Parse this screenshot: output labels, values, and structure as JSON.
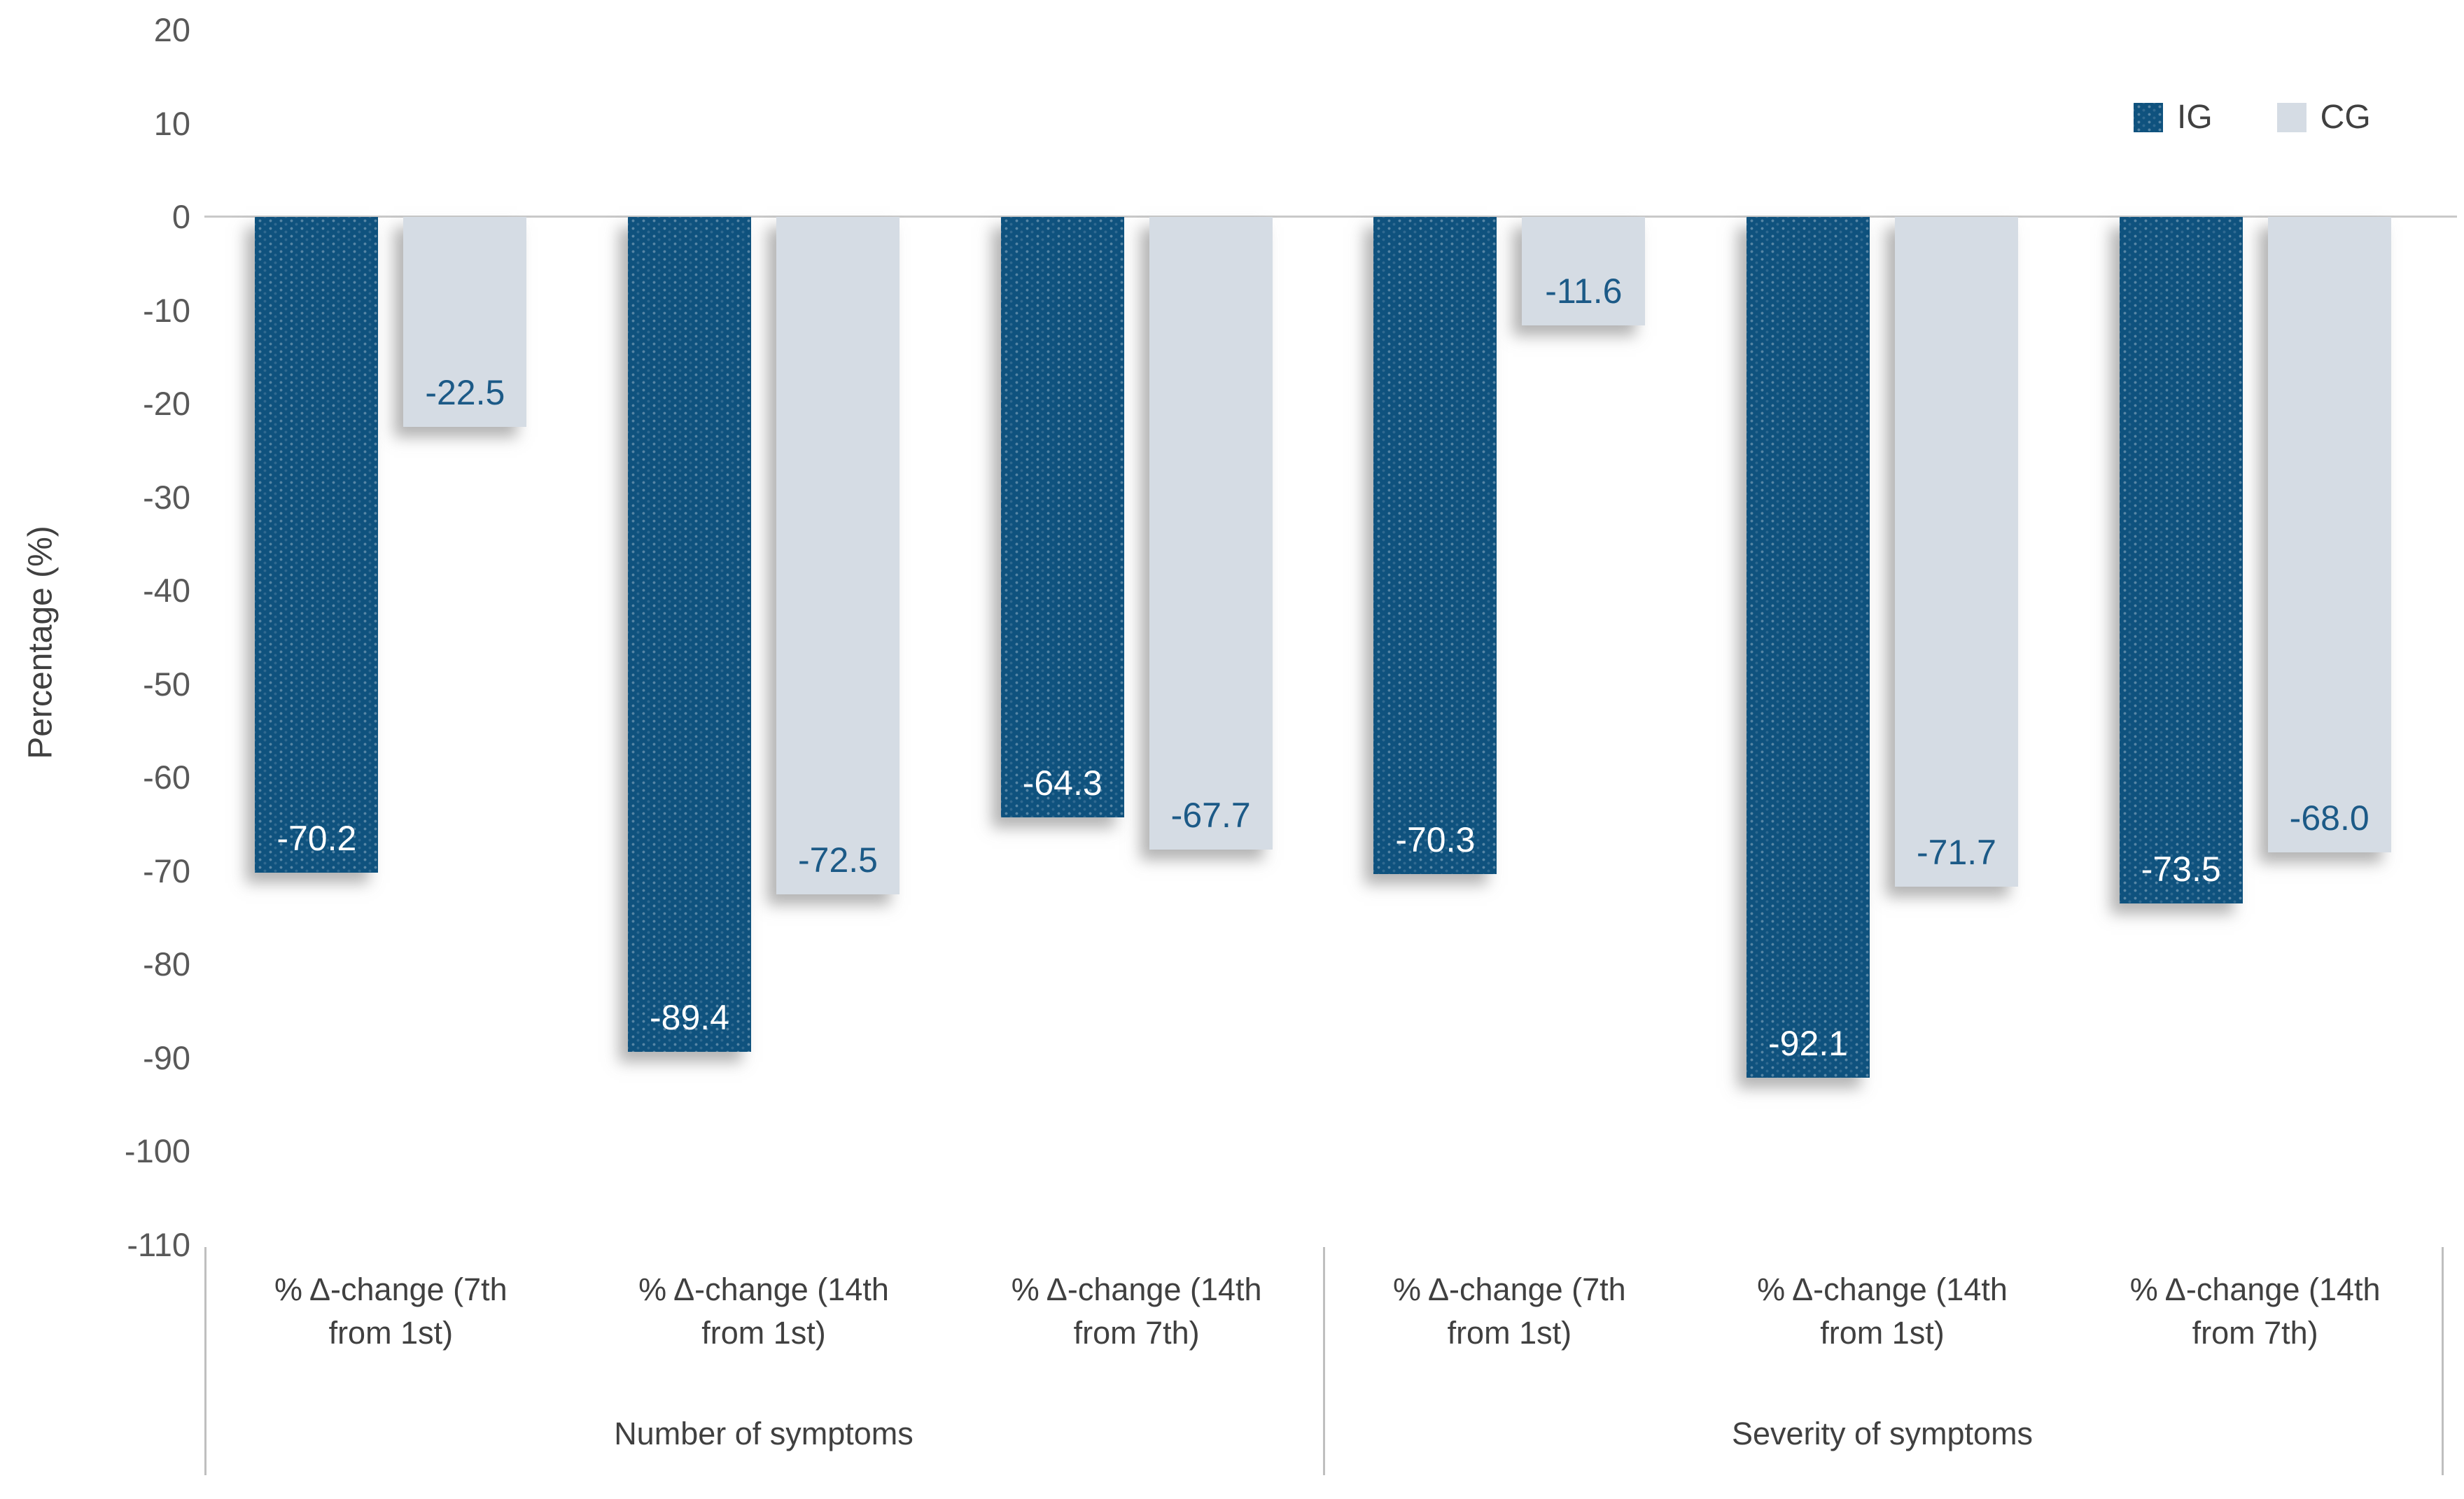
{
  "figure": {
    "y_axis_title": "Percentage (%)",
    "colors": {
      "ig_bar": "#0f527e",
      "cg_bar": "#d5dce4",
      "ig_value_text": "#ffffff",
      "cg_value_text": "#1c5a87",
      "tick_text": "#595959",
      "label_text": "#404040",
      "axis_line": "#c9c9c9",
      "separator_line": "#bfbfbf"
    }
  },
  "chart_data": {
    "type": "bar",
    "title": "",
    "ylabel": "Percentage (%)",
    "xlabel": "",
    "ylim": [
      -110,
      20
    ],
    "grid": false,
    "legend_position": "top-right",
    "legend": [
      "IG",
      "CG"
    ],
    "y_ticks": [
      20,
      10,
      0,
      -10,
      -20,
      -30,
      -40,
      -50,
      -60,
      -70,
      -80,
      -90,
      -100,
      -110
    ],
    "groups": [
      {
        "label": "Number of symptoms",
        "categories": [
          "% Δ-change (7th from 1st)",
          "% Δ-change (14th from 1st)",
          "% Δ-change (14th from 7th)"
        ],
        "series": [
          {
            "name": "IG",
            "values": [
              -70.2,
              -89.4,
              -64.3
            ]
          },
          {
            "name": "CG",
            "values": [
              -22.5,
              -72.5,
              -67.7
            ]
          }
        ]
      },
      {
        "label": "Severity of symptoms",
        "categories": [
          "% Δ-change (7th from 1st)",
          "% Δ-change (14th from 1st)",
          "% Δ-change (14th from 7th)"
        ],
        "series": [
          {
            "name": "IG",
            "values": [
              -70.3,
              -92.1,
              -73.5
            ]
          },
          {
            "name": "CG",
            "values": [
              -11.6,
              -71.7,
              -68.0
            ]
          }
        ]
      }
    ]
  }
}
